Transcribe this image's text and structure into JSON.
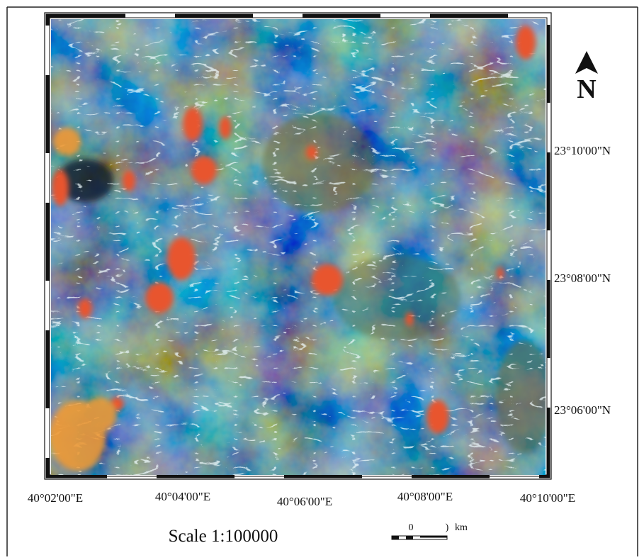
{
  "map": {
    "latitude_labels": [
      "23°10'00\"N",
      "23°08'00\"N",
      "23°06'00\"N"
    ],
    "longitude_labels": [
      "40°02'00\"E",
      "40°04'00\"E",
      "40°06'00\"E",
      "40°08'00\"E",
      "40°10'00\"E"
    ],
    "north_label": "N",
    "scale_text": "Scale 1:100000",
    "scale_bar": {
      "start_label": "0",
      "end_label": ")",
      "unit": "km"
    }
  }
}
